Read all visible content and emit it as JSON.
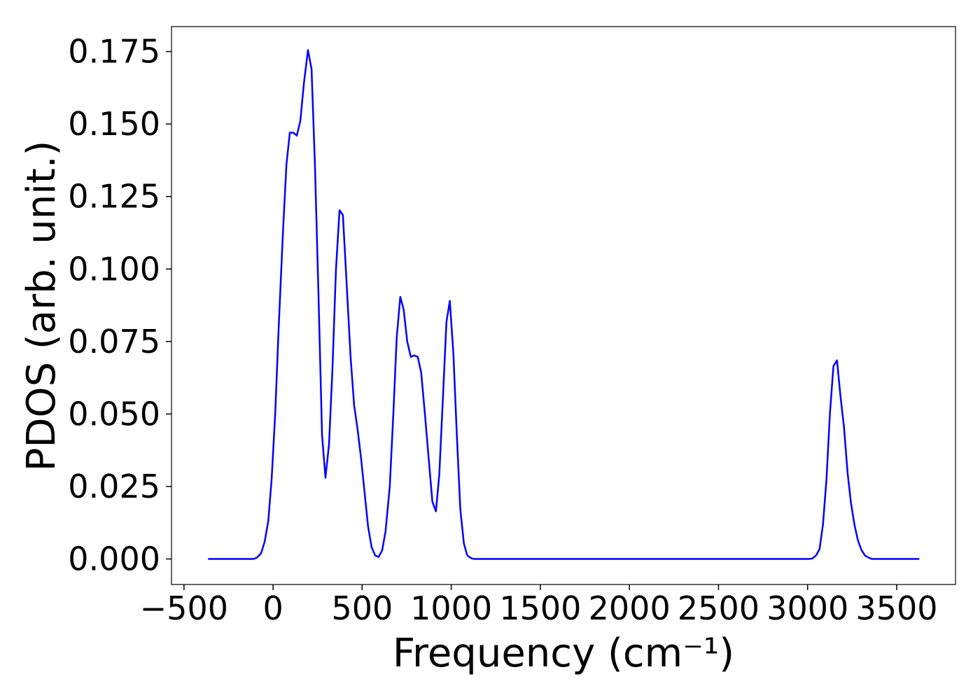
{
  "chart_data": {
    "type": "line",
    "xlabel": "Frequency (cm⁻¹)",
    "ylabel": "PDOS (arb. unit.)",
    "x": [
      -365,
      -110,
      -90,
      -67,
      -47,
      -27,
      -8,
      12,
      31,
      55,
      75,
      94,
      114,
      133,
      153,
      173,
      196,
      216,
      235,
      255,
      275,
      294,
      314,
      333,
      353,
      373,
      392,
      412,
      435,
      455,
      475,
      494,
      514,
      533,
      553,
      573,
      592,
      612,
      631,
      655,
      675,
      694,
      714,
      733,
      753,
      773,
      792,
      812,
      831,
      851,
      875,
      894,
      914,
      933,
      953,
      973,
      992,
      1012,
      1031,
      1051,
      1071,
      1090,
      1114,
      1133,
      3008,
      3027,
      3047,
      3067,
      3086,
      3106,
      3125,
      3145,
      3165,
      3184,
      3204,
      3224,
      3243,
      3263,
      3282,
      3302,
      3322,
      3341,
      3361,
      3627
    ],
    "series": [
      {
        "color": "#0000ff",
        "values": [
          0,
          0,
          0.0005,
          0.002,
          0.006,
          0.013,
          0.0275,
          0.05,
          0.079,
          0.112,
          0.136,
          0.147,
          0.147,
          0.146,
          0.151,
          0.164,
          0.1755,
          0.169,
          0.136,
          0.091,
          0.0427,
          0.028,
          0.0395,
          0.065,
          0.0998,
          0.1203,
          0.1186,
          0.096,
          0.0697,
          0.053,
          0.0444,
          0.0347,
          0.0227,
          0.0113,
          0.0041,
          0.0012,
          0.0007,
          0.0029,
          0.0094,
          0.025,
          0.05,
          0.0764,
          0.0904,
          0.086,
          0.075,
          0.0697,
          0.0702,
          0.0697,
          0.0644,
          0.0509,
          0.0335,
          0.0198,
          0.0164,
          0.0292,
          0.0552,
          0.0817,
          0.089,
          0.0709,
          0.0432,
          0.0171,
          0.0053,
          0.0012,
          0.0002,
          0,
          0,
          0.0002,
          0.0012,
          0.0034,
          0.0118,
          0.0275,
          0.05,
          0.0665,
          0.0685,
          0.0564,
          0.0456,
          0.0299,
          0.0195,
          0.0118,
          0.0065,
          0.0031,
          0.0012,
          0.0005,
          0,
          0
        ]
      }
    ],
    "xlim": [
      -570,
      3830
    ],
    "xticks": [
      {
        "value": -500,
        "label": "−500"
      },
      0,
      500,
      1000,
      1500,
      2000,
      2500,
      3000,
      3500
    ],
    "ylim": [
      -0.0088,
      0.1836
    ],
    "yticks": [
      {
        "value": 0,
        "label": "0.000"
      },
      {
        "value": 0.025,
        "label": "0.025"
      },
      {
        "value": 0.05,
        "label": "0.050"
      },
      {
        "value": 0.075,
        "label": "0.075"
      },
      {
        "value": 0.1,
        "label": "0.100"
      },
      {
        "value": 0.125,
        "label": "0.125"
      },
      {
        "value": 0.15,
        "label": "0.150"
      },
      {
        "value": 0.175,
        "label": "0.175"
      }
    ]
  }
}
